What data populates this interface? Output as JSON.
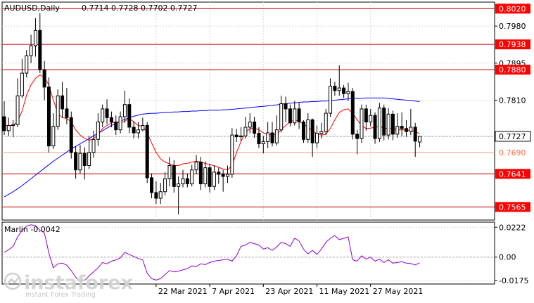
{
  "chart_data": {
    "type": "candlestick",
    "symbol_label": "AUDUSD,Daily",
    "ohlc_label": "0.7714 0.7728 0.7702 0.7727",
    "price_panel": {
      "ylim": [
        0.7535,
        0.8035
      ],
      "price_ticks": [
        "0.7980",
        "0.7895",
        "0.7810",
        "0.7565"
      ],
      "levels": [
        {
          "value": 0.802,
          "label": "0.8020",
          "style": "red-line"
        },
        {
          "value": 0.7938,
          "label": "0.7938",
          "style": "red-line"
        },
        {
          "value": 0.788,
          "label": "0.7880",
          "style": "red-line"
        },
        {
          "value": 0.7727,
          "label": "0.7727",
          "style": "current-price"
        },
        {
          "value": 0.769,
          "label": "0.7690",
          "style": "orange-line"
        },
        {
          "value": 0.7641,
          "label": "0.7641",
          "style": "red-line"
        },
        {
          "value": 0.7565,
          "label": "0.7565",
          "style": "red-line"
        }
      ],
      "candles": [
        [
          0.7772,
          0.774,
          0.7808,
          0.773
        ],
        [
          0.774,
          0.7752,
          0.777,
          0.7728
        ],
        [
          0.7752,
          0.7754,
          0.7764,
          0.7725
        ],
        [
          0.7754,
          0.782,
          0.786,
          0.7748
        ],
        [
          0.782,
          0.7872,
          0.7905,
          0.7815
        ],
        [
          0.7872,
          0.7912,
          0.7925,
          0.7862
        ],
        [
          0.7912,
          0.7935,
          0.796,
          0.7895
        ],
        [
          0.7935,
          0.797,
          0.7998,
          0.791
        ],
        [
          0.797,
          0.788,
          0.801,
          0.7872
        ],
        [
          0.788,
          0.784,
          0.79,
          0.781
        ],
        [
          0.784,
          0.7705,
          0.7862,
          0.769
        ],
        [
          0.7705,
          0.775,
          0.778,
          0.7698
        ],
        [
          0.775,
          0.782,
          0.7835,
          0.7742
        ],
        [
          0.782,
          0.779,
          0.7852,
          0.777
        ],
        [
          0.779,
          0.777,
          0.7838,
          0.7755
        ],
        [
          0.777,
          0.769,
          0.7784,
          0.7676
        ],
        [
          0.769,
          0.765,
          0.7705,
          0.763
        ],
        [
          0.765,
          0.7688,
          0.7708,
          0.7642
        ],
        [
          0.7688,
          0.766,
          0.7702,
          0.7628
        ],
        [
          0.766,
          0.769,
          0.7728,
          0.7652
        ],
        [
          0.769,
          0.772,
          0.774,
          0.7678
        ],
        [
          0.772,
          0.776,
          0.778,
          0.7705
        ],
        [
          0.776,
          0.779,
          0.78,
          0.7748
        ],
        [
          0.779,
          0.777,
          0.7812,
          0.7755
        ],
        [
          0.777,
          0.776,
          0.7784,
          0.7748
        ],
        [
          0.776,
          0.7742,
          0.7775,
          0.773
        ],
        [
          0.7742,
          0.7772,
          0.7784,
          0.7734
        ],
        [
          0.7772,
          0.78,
          0.7832,
          0.7758
        ],
        [
          0.78,
          0.7748,
          0.7814,
          0.7734
        ],
        [
          0.7748,
          0.7735,
          0.7762,
          0.7722
        ],
        [
          0.7735,
          0.7742,
          0.776,
          0.7722
        ],
        [
          0.7742,
          0.7752,
          0.777,
          0.7738
        ],
        [
          0.7752,
          0.7632,
          0.776,
          0.762
        ],
        [
          0.7632,
          0.7598,
          0.7642,
          0.7585
        ],
        [
          0.7598,
          0.7585,
          0.7624,
          0.7572
        ],
        [
          0.7585,
          0.76,
          0.762,
          0.7572
        ],
        [
          0.76,
          0.763,
          0.7645,
          0.7592
        ],
        [
          0.763,
          0.766,
          0.768,
          0.7612
        ],
        [
          0.766,
          0.7612,
          0.7672,
          0.7598
        ],
        [
          0.7612,
          0.7618,
          0.7635,
          0.7548
        ],
        [
          0.7618,
          0.763,
          0.765,
          0.761
        ],
        [
          0.763,
          0.7618,
          0.7642,
          0.761
        ],
        [
          0.7618,
          0.765,
          0.7662,
          0.7612
        ],
        [
          0.765,
          0.7668,
          0.7684,
          0.764
        ],
        [
          0.7668,
          0.7618,
          0.768,
          0.7604
        ],
        [
          0.7618,
          0.7655,
          0.767,
          0.761
        ],
        [
          0.7655,
          0.7612,
          0.7664,
          0.7598
        ],
        [
          0.7612,
          0.7645,
          0.766,
          0.7604
        ],
        [
          0.7645,
          0.764,
          0.7655,
          0.7618
        ],
        [
          0.764,
          0.7635,
          0.765,
          0.76
        ],
        [
          0.7635,
          0.764,
          0.766,
          0.762
        ],
        [
          0.764,
          0.773,
          0.7746,
          0.7632
        ],
        [
          0.773,
          0.7726,
          0.7744,
          0.7714
        ],
        [
          0.7726,
          0.7728,
          0.7748,
          0.7716
        ],
        [
          0.7728,
          0.7748,
          0.7772,
          0.7722
        ],
        [
          0.7748,
          0.776,
          0.778,
          0.7734
        ],
        [
          0.776,
          0.7734,
          0.7772,
          0.7724
        ],
        [
          0.7734,
          0.771,
          0.7748,
          0.77
        ],
        [
          0.771,
          0.7715,
          0.7728,
          0.7688
        ],
        [
          0.7715,
          0.7735,
          0.776,
          0.77
        ],
        [
          0.7735,
          0.7712,
          0.776,
          0.7704
        ],
        [
          0.7712,
          0.7742,
          0.7775,
          0.7706
        ],
        [
          0.7742,
          0.7802,
          0.782,
          0.7736
        ],
        [
          0.7802,
          0.779,
          0.7818,
          0.776
        ],
        [
          0.779,
          0.7758,
          0.78,
          0.775
        ],
        [
          0.7758,
          0.779,
          0.7808,
          0.7752
        ],
        [
          0.779,
          0.776,
          0.7804,
          0.7744
        ],
        [
          0.776,
          0.772,
          0.7764,
          0.7712
        ],
        [
          0.772,
          0.7765,
          0.778,
          0.7712
        ],
        [
          0.7765,
          0.7712,
          0.7768,
          0.768
        ],
        [
          0.7712,
          0.7734,
          0.7752,
          0.77
        ],
        [
          0.7734,
          0.7738,
          0.7758,
          0.7722
        ],
        [
          0.7738,
          0.778,
          0.779,
          0.773
        ],
        [
          0.778,
          0.7842,
          0.786,
          0.7772
        ],
        [
          0.7842,
          0.7832,
          0.7852,
          0.782
        ],
        [
          0.7832,
          0.7838,
          0.789,
          0.782
        ],
        [
          0.7838,
          0.7825,
          0.7845,
          0.7815
        ],
        [
          0.7825,
          0.783,
          0.785,
          0.7808
        ],
        [
          0.783,
          0.7732,
          0.7838,
          0.772
        ],
        [
          0.7732,
          0.7722,
          0.7742,
          0.7686
        ],
        [
          0.7722,
          0.779,
          0.78,
          0.7712
        ],
        [
          0.779,
          0.776,
          0.78,
          0.774
        ],
        [
          0.776,
          0.7775,
          0.779,
          0.775
        ],
        [
          0.7775,
          0.7722,
          0.7782,
          0.771
        ],
        [
          0.7722,
          0.7792,
          0.7804,
          0.7714
        ],
        [
          0.7792,
          0.773,
          0.78,
          0.7718
        ],
        [
          0.773,
          0.7778,
          0.7792,
          0.772
        ],
        [
          0.7778,
          0.7732,
          0.7786,
          0.7718
        ],
        [
          0.7732,
          0.775,
          0.778,
          0.7724
        ],
        [
          0.775,
          0.7745,
          0.7782,
          0.7728
        ],
        [
          0.7745,
          0.7738,
          0.7764,
          0.7726
        ],
        [
          0.7738,
          0.7748,
          0.779,
          0.773
        ],
        [
          0.7748,
          0.7716,
          0.7758,
          0.768
        ],
        [
          0.7714,
          0.7727,
          0.7728,
          0.7702
        ]
      ],
      "ma_fast": [
        0.7752,
        0.7752,
        0.7752,
        0.7762,
        0.7785,
        0.7822,
        0.7845,
        0.786,
        0.7868,
        0.7862,
        0.7845,
        0.781,
        0.778,
        0.777,
        0.7768,
        0.776,
        0.7742,
        0.773,
        0.7722,
        0.7718,
        0.7722,
        0.773,
        0.7745,
        0.7752,
        0.7758,
        0.776,
        0.7758,
        0.7762,
        0.7768,
        0.776,
        0.7752,
        0.775,
        0.7735,
        0.7712,
        0.769,
        0.7675,
        0.7668,
        0.7664,
        0.766,
        0.766,
        0.7664,
        0.7665,
        0.7668,
        0.767,
        0.7668,
        0.7665,
        0.7662,
        0.766,
        0.7656,
        0.7652,
        0.765,
        0.766,
        0.769,
        0.7715,
        0.7735,
        0.7745,
        0.7746,
        0.7742,
        0.7735,
        0.7732,
        0.773,
        0.7732,
        0.7742,
        0.7752,
        0.776,
        0.7765,
        0.7762,
        0.7755,
        0.7748,
        0.774,
        0.7733,
        0.773,
        0.7732,
        0.7745,
        0.7765,
        0.7782,
        0.7788,
        0.779,
        0.778,
        0.7765,
        0.7752,
        0.7745,
        0.7746,
        0.7748,
        0.775,
        0.7746,
        0.7745,
        0.7745,
        0.7742,
        0.7742,
        0.7742,
        0.774,
        0.7738,
        0.7733
      ],
      "ma_slow": [
        0.7588,
        0.7594,
        0.76,
        0.7607,
        0.7614,
        0.7622,
        0.763,
        0.7638,
        0.7646,
        0.7654,
        0.7662,
        0.767,
        0.7677,
        0.7684,
        0.7691,
        0.7698,
        0.7704,
        0.771,
        0.7716,
        0.7722,
        0.7728,
        0.7734,
        0.774,
        0.7746,
        0.7752,
        0.7757,
        0.7762,
        0.7766,
        0.777,
        0.7773,
        0.7776,
        0.7778,
        0.7779,
        0.778,
        0.778,
        0.7781,
        0.7782,
        0.7782,
        0.7783,
        0.7783,
        0.7784,
        0.7784,
        0.7785,
        0.7785,
        0.7786,
        0.7786,
        0.7787,
        0.7787,
        0.7787,
        0.7788,
        0.7788,
        0.7789,
        0.779,
        0.7791,
        0.7792,
        0.7793,
        0.7794,
        0.7795,
        0.7796,
        0.7797,
        0.7798,
        0.7799,
        0.7801,
        0.7802,
        0.7803,
        0.7804,
        0.7805,
        0.7806,
        0.7806,
        0.7807,
        0.7807,
        0.7808,
        0.7808,
        0.7809,
        0.781,
        0.7811,
        0.7812,
        0.7813,
        0.7814,
        0.7814,
        0.7814,
        0.7815,
        0.7815,
        0.7815,
        0.7815,
        0.7815,
        0.7814,
        0.7813,
        0.7812,
        0.7811,
        0.781,
        0.7809,
        0.7808,
        0.7807
      ]
    },
    "oscillator_panel": {
      "label": "Marlin -0.0042",
      "ylim": [
        -0.02,
        0.026
      ],
      "ticks": [
        "0.0222",
        "0.00",
        "-0.0175"
      ],
      "zero": 0.0,
      "values": [
        0.0035,
        0.0055,
        0.008,
        0.015,
        0.02,
        0.023,
        0.024,
        0.0235,
        0.02,
        0.018,
        0.003,
        -0.008,
        -0.005,
        -0.0045,
        -0.006,
        -0.01,
        -0.015,
        -0.018,
        -0.0175,
        -0.014,
        -0.011,
        -0.008,
        -0.004,
        -0.005,
        -0.003,
        -0.002,
        -0.0005,
        0.0035,
        0.002,
        0.0005,
        -0.001,
        -0.002,
        -0.012,
        -0.016,
        -0.017,
        -0.016,
        -0.013,
        -0.01,
        -0.011,
        -0.0105,
        -0.0095,
        -0.0085,
        -0.0065,
        -0.007,
        -0.005,
        -0.0055,
        -0.004,
        -0.003,
        -0.0025,
        -0.002,
        -0.0015,
        -0.003,
        0.001,
        0.008,
        0.009,
        0.011,
        0.01,
        0.009,
        0.006,
        0.007,
        0.005,
        0.0075,
        0.011,
        0.01,
        0.008,
        0.014,
        0.012,
        0.006,
        0.0025,
        0.005,
        0.002,
        0.006,
        0.011,
        0.014,
        0.016,
        0.013,
        0.014,
        0.015,
        -0.002,
        -0.003,
        0.001,
        -0.0015,
        0.0,
        -0.003,
        -0.0015,
        -0.004,
        -0.002,
        -0.0045,
        -0.004,
        -0.0035,
        -0.0045,
        -0.0048,
        -0.0058,
        -0.0042
      ]
    },
    "x_labels": [
      {
        "label": "22 Mar 2021",
        "index": 34
      },
      {
        "label": "7 Apr 2021",
        "index": 46
      },
      {
        "label": "23 Apr 2021",
        "index": 58
      },
      {
        "label": "11 May 2021",
        "index": 70
      },
      {
        "label": "27 May 2021",
        "index": 82
      }
    ],
    "colors": {
      "background": "#ffffff",
      "panel_border": "#000000",
      "grid": "#d8d8d8",
      "candle": "#000000",
      "candle_up": "#ffffff",
      "candle_down": "#000000",
      "ma_fast": "#ff0000",
      "ma_slow": "#0000ff",
      "level_line": "#cc0000",
      "level_label_bg": "#ff0000",
      "orange_line": "#ffa07a",
      "orange_label_text": "#ff6a3d",
      "current_price_line": "#a0a0a0",
      "oscillator": "#9400d3",
      "text": "#000000",
      "label_text_on_red": "#ffffff"
    },
    "watermark": {
      "brand": "instaforex",
      "tagline": "Instant Forex Trading"
    }
  }
}
